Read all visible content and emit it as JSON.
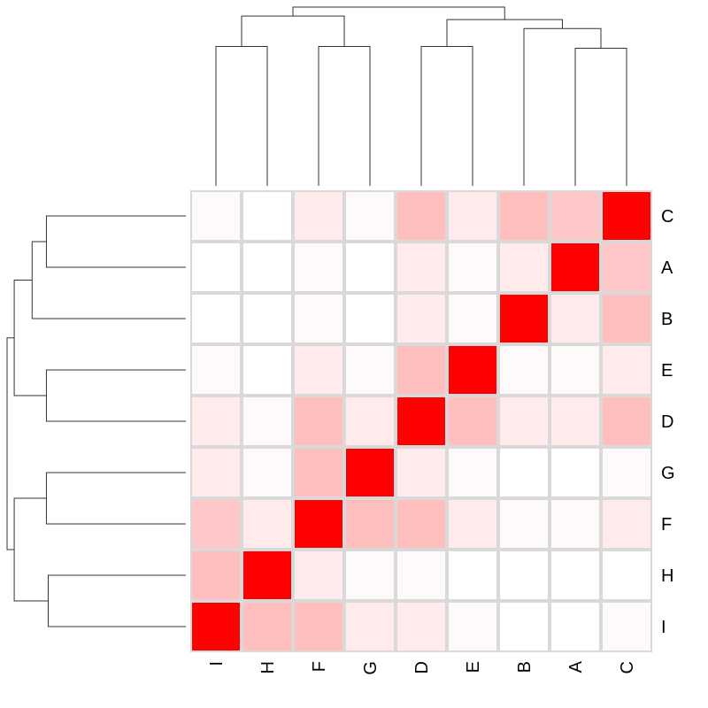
{
  "chart_data": {
    "type": "heatmap",
    "title": "",
    "rows": [
      "C",
      "A",
      "B",
      "E",
      "D",
      "G",
      "F",
      "H",
      "I"
    ],
    "cols": [
      "I",
      "H",
      "F",
      "G",
      "D",
      "E",
      "B",
      "A",
      "C"
    ],
    "matrix": [
      [
        0.02,
        0.0,
        0.08,
        0.02,
        0.25,
        0.08,
        0.25,
        0.22,
        1.0
      ],
      [
        0.0,
        0.0,
        0.02,
        0.0,
        0.08,
        0.02,
        0.08,
        1.0,
        0.22
      ],
      [
        0.0,
        0.0,
        0.02,
        0.0,
        0.08,
        0.02,
        1.0,
        0.08,
        0.25
      ],
      [
        0.02,
        0.0,
        0.08,
        0.02,
        0.25,
        1.0,
        0.02,
        0.02,
        0.08
      ],
      [
        0.08,
        0.02,
        0.25,
        0.08,
        1.0,
        0.25,
        0.08,
        0.08,
        0.25
      ],
      [
        0.08,
        0.02,
        0.25,
        1.0,
        0.08,
        0.02,
        0.0,
        0.0,
        0.02
      ],
      [
        0.22,
        0.08,
        1.0,
        0.25,
        0.25,
        0.08,
        0.02,
        0.02,
        0.08
      ],
      [
        0.25,
        1.0,
        0.08,
        0.02,
        0.02,
        0.0,
        0.0,
        0.0,
        0.0
      ],
      [
        1.0,
        0.25,
        0.25,
        0.08,
        0.08,
        0.02,
        0.0,
        0.0,
        0.02
      ]
    ],
    "colors": {
      "low": "#ffffff",
      "high": "#ff0000",
      "grid": "#d9d9d9",
      "line": "#333333"
    },
    "row_dendrogram": [
      {
        "a": "C",
        "b": "A",
        "h": 0.78
      },
      {
        "a": "C+A",
        "b": "B",
        "h": 0.86
      },
      {
        "a": "E",
        "b": "D",
        "h": 0.78
      },
      {
        "a": "C+A+B",
        "b": "E+D",
        "h": 0.96
      },
      {
        "a": "G",
        "b": "F",
        "h": 0.78
      },
      {
        "a": "H",
        "b": "I",
        "h": 0.77
      },
      {
        "a": "G+F",
        "b": "H+I",
        "h": 0.96
      },
      {
        "a": "C+A+B+E+D",
        "b": "G+F+H+I",
        "h": 1.0
      }
    ],
    "col_dendrogram": [
      {
        "a": "I",
        "b": "H",
        "h": 0.78
      },
      {
        "a": "F",
        "b": "G",
        "h": 0.78
      },
      {
        "a": "I+H",
        "b": "F+G",
        "h": 0.95
      },
      {
        "a": "A",
        "b": "C",
        "h": 0.77
      },
      {
        "a": "B",
        "b": "A+C",
        "h": 0.88
      },
      {
        "a": "D",
        "b": "E",
        "h": 0.78
      },
      {
        "a": "D+E",
        "b": "B+A+C",
        "h": 0.93
      },
      {
        "a": "I+H+F+G",
        "b": "D+E+B+A+C",
        "h": 1.0
      }
    ]
  }
}
